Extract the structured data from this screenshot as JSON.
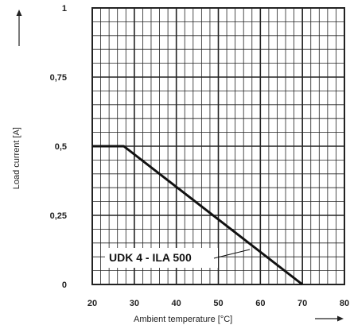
{
  "chart_data": {
    "type": "line",
    "title": "",
    "xlabel": "Ambient temperature [°C]",
    "ylabel": "Load current [A]",
    "xlim": [
      20,
      80
    ],
    "ylim": [
      0,
      1
    ],
    "x_ticks": [
      20,
      30,
      40,
      50,
      60,
      70,
      80
    ],
    "x_tick_labels": [
      "20",
      "30",
      "40",
      "50",
      "60",
      "70",
      "80"
    ],
    "y_ticks": [
      0,
      0.25,
      0.5,
      0.75,
      1
    ],
    "y_tick_labels": [
      "0",
      "0,25",
      "0,5",
      "0,75",
      "1"
    ],
    "grid": true,
    "minor_grid_divisions_x": 5,
    "minor_grid_divisions_y": 5,
    "series": [
      {
        "name": "UDK 4 - ILA 500",
        "x": [
          20,
          27.5,
          70
        ],
        "y": [
          0.5,
          0.5,
          0
        ]
      }
    ],
    "annotations": [
      {
        "text": "UDK 4 - ILA 500",
        "x": 64,
        "y": 0.15
      }
    ],
    "axis_arrows": [
      "x",
      "y"
    ],
    "colors": {
      "line": "#111111",
      "grid": "#222222",
      "text": "#222222"
    }
  }
}
